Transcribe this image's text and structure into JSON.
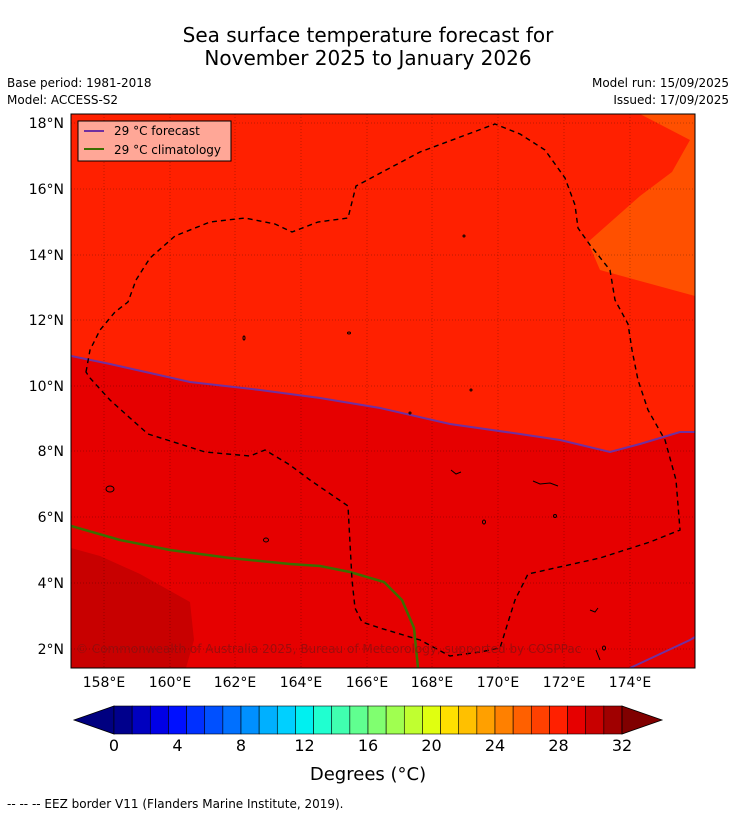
{
  "title_line1": "Sea surface temperature forecast for",
  "title_line2": "November 2025 to January 2026",
  "meta": {
    "base_period": "Base period: 1981-2018",
    "model": "Model: ACCESS-S2",
    "model_run": "Model run: 15/09/2025",
    "issued": "Issued: 17/09/2025"
  },
  "map": {
    "lat_labels": [
      "18°N",
      "16°N",
      "14°N",
      "12°N",
      "10°N",
      "8°N",
      "6°N",
      "4°N",
      "2°N"
    ],
    "lon_labels": [
      "158°E",
      "160°E",
      "162°E",
      "164°E",
      "166°E",
      "168°E",
      "170°E",
      "172°E",
      "174°E"
    ],
    "legend": {
      "forecast": "29 °C  forecast",
      "climatology": "29 °C  climatology"
    },
    "copyright": "© Commonwealth of Australia 2025, Bureau of Meteorology, supported by COSPPac",
    "colors": {
      "sst_lt28": "#ff5000",
      "sst_28_29": "#ff2000",
      "sst_29_30": "#e60000",
      "sst_30_31": "#c80000",
      "forecast_line": "#7030a0",
      "climatology_line": "#3c6e00",
      "eez_border": "#000000"
    }
  },
  "colorbar": {
    "ticks": [
      "0",
      "4",
      "8",
      "12",
      "16",
      "20",
      "24",
      "28",
      "32"
    ],
    "label": "Degrees (°C)",
    "colors": [
      "#00008c",
      "#0000bf",
      "#0000e6",
      "#0010ff",
      "#0030ff",
      "#0050ff",
      "#0070ff",
      "#0090ff",
      "#00b0ff",
      "#00d0ff",
      "#00f0f0",
      "#20ffd0",
      "#40ffb0",
      "#60ff90",
      "#80ff70",
      "#a0ff50",
      "#c0ff30",
      "#e0ff10",
      "#ffe000",
      "#ffc000",
      "#ffa000",
      "#ff8000",
      "#ff6000",
      "#ff4000",
      "#ff2000",
      "#e60000",
      "#c80000",
      "#a00000"
    ],
    "under_color": "#000080",
    "over_color": "#800000"
  },
  "footer": "--  --  -- EEZ border V11 (Flanders Marine Institute, 2019)."
}
